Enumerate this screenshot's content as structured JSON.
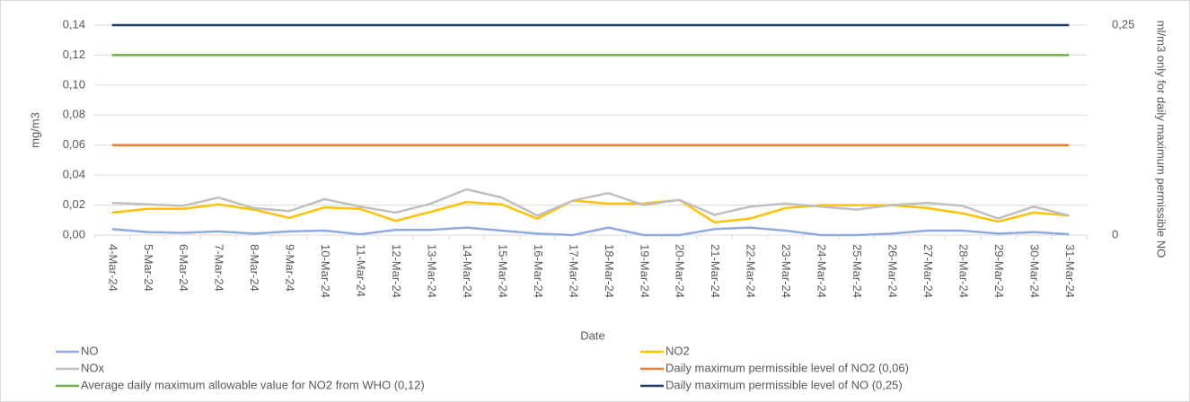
{
  "chart_data": {
    "type": "line",
    "xlabel": "Date",
    "ylabel": "mg/m3",
    "y2label": "ml/m3 only for daily maximum permissible NO",
    "categories": [
      "4-Mar-24",
      "5-Mar-24",
      "6-Mar-24",
      "7-Mar-24",
      "8-Mar-24",
      "9-Mar-24",
      "10-Mar-24",
      "11-Mar-24",
      "12-Mar-24",
      "13-Mar-24",
      "14-Mar-24",
      "15-Mar-24",
      "16-Mar-24",
      "17-Mar-24",
      "18-Mar-24",
      "19-Mar-24",
      "20-Mar-24",
      "21-Mar-24",
      "22-Mar-24",
      "23-Mar-24",
      "24-Mar-24",
      "25-Mar-24",
      "26-Mar-24",
      "27-Mar-24",
      "28-Mar-24",
      "29-Mar-24",
      "30-Mar-24",
      "31-Mar-24"
    ],
    "ylim": [
      0,
      0.14
    ],
    "yticks": [
      {
        "value": 0,
        "label": "0,00"
      },
      {
        "value": 0.02,
        "label": "0,02"
      },
      {
        "value": 0.04,
        "label": "0,04"
      },
      {
        "value": 0.06,
        "label": "0,06"
      },
      {
        "value": 0.08,
        "label": "0,08"
      },
      {
        "value": 0.1,
        "label": "0,10"
      },
      {
        "value": 0.12,
        "label": "0,12"
      },
      {
        "value": 0.14,
        "label": "0,14"
      }
    ],
    "y2lim": [
      0,
      0.25
    ],
    "y2ticks": [
      0,
      {
        "value": 0.25,
        "label": "0,25"
      }
    ],
    "grid": true,
    "legend": "bottom",
    "series": [
      {
        "name": "NO",
        "color": "#8faadc",
        "values": [
          0.004,
          0.002,
          0.0015,
          0.0025,
          0.001,
          0.0025,
          0.003,
          0.0005,
          0.0035,
          0.0035,
          0.005,
          0.003,
          0.001,
          0,
          0.005,
          0,
          0,
          0.004,
          0.005,
          0.003,
          0,
          0,
          0.001,
          0.003,
          0.003,
          0.001,
          0.002,
          0.0005
        ]
      },
      {
        "name": "NO2",
        "color": "#ffc000",
        "values": [
          0.015,
          0.0175,
          0.0175,
          0.0205,
          0.017,
          0.0115,
          0.0185,
          0.0175,
          0.0095,
          0.0155,
          0.022,
          0.0205,
          0.011,
          0.023,
          0.021,
          0.021,
          0.0235,
          0.0085,
          0.011,
          0.018,
          0.02,
          0.02,
          0.02,
          0.018,
          0.0145,
          0.009,
          0.015,
          0.013
        ]
      },
      {
        "name": "NOx",
        "color": "#bfbfbf",
        "values": [
          0.0215,
          0.0205,
          0.0195,
          0.025,
          0.018,
          0.016,
          0.024,
          0.019,
          0.015,
          0.021,
          0.0305,
          0.025,
          0.013,
          0.023,
          0.028,
          0.02,
          0.0235,
          0.0135,
          0.019,
          0.021,
          0.019,
          0.017,
          0.02,
          0.0215,
          0.0195,
          0.011,
          0.019,
          0.013
        ]
      },
      {
        "name": "Daily maximum permissible level of NO2 (0,06)",
        "color": "#ed7d31",
        "values": [
          0.06,
          0.06,
          0.06,
          0.06,
          0.06,
          0.06,
          0.06,
          0.06,
          0.06,
          0.06,
          0.06,
          0.06,
          0.06,
          0.06,
          0.06,
          0.06,
          0.06,
          0.06,
          0.06,
          0.06,
          0.06,
          0.06,
          0.06,
          0.06,
          0.06,
          0.06,
          0.06,
          0.06
        ]
      },
      {
        "name": "Average daily maximum allowable value for NO2 from WHO (0,12)",
        "color": "#70ad47",
        "values": [
          0.12,
          0.12,
          0.12,
          0.12,
          0.12,
          0.12,
          0.12,
          0.12,
          0.12,
          0.12,
          0.12,
          0.12,
          0.12,
          0.12,
          0.12,
          0.12,
          0.12,
          0.12,
          0.12,
          0.12,
          0.12,
          0.12,
          0.12,
          0.12,
          0.12,
          0.12,
          0.12,
          0.12
        ]
      },
      {
        "name": "Daily maximum permissible level of NO (0,25)",
        "color": "#203864",
        "axis": "y2",
        "values": [
          0.25,
          0.25,
          0.25,
          0.25,
          0.25,
          0.25,
          0.25,
          0.25,
          0.25,
          0.25,
          0.25,
          0.25,
          0.25,
          0.25,
          0.25,
          0.25,
          0.25,
          0.25,
          0.25,
          0.25,
          0.25,
          0.25,
          0.25,
          0.25,
          0.25,
          0.25,
          0.25,
          0.25
        ]
      }
    ]
  }
}
